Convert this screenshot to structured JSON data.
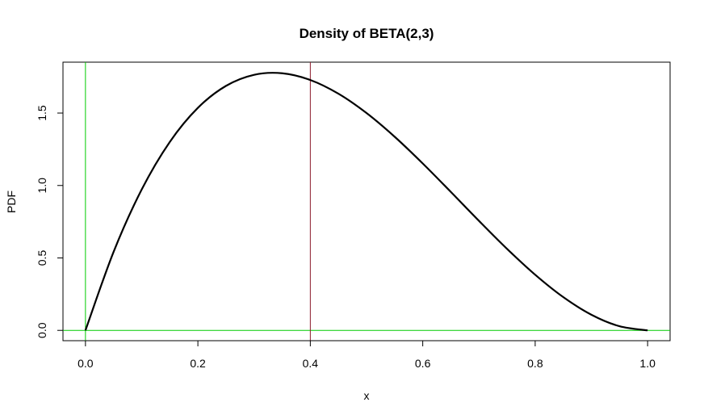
{
  "chart_data": {
    "type": "line",
    "title": "Density of BETA(2,3)",
    "xlabel": "x",
    "ylabel": "PDF",
    "xlim": [
      -0.04,
      1.04
    ],
    "ylim": [
      -0.0712,
      1.8512
    ],
    "x_ticks": [
      0.0,
      0.2,
      0.4,
      0.6,
      0.8,
      1.0
    ],
    "x_tick_labels": [
      "0.0",
      "0.2",
      "0.4",
      "0.6",
      "0.8",
      "1.0"
    ],
    "y_ticks": [
      0.0,
      0.5,
      1.0,
      1.5
    ],
    "y_tick_labels": [
      "0.0",
      "0.5",
      "1.0",
      "1.5"
    ],
    "grid": false,
    "legend": "none",
    "series": [
      {
        "color": "#000000",
        "x": [
          0.0,
          0.05,
          0.1,
          0.15,
          0.2,
          0.25,
          0.3,
          0.35,
          0.4,
          0.45,
          0.5,
          0.55,
          0.6,
          0.65,
          0.7,
          0.75,
          0.8,
          0.85,
          0.9,
          0.95,
          1.0
        ],
        "y": [
          0.0,
          0.5415,
          0.972,
          1.3005,
          1.536,
          1.6875,
          1.764,
          1.7745,
          1.728,
          1.6335,
          1.5,
          1.3365,
          1.152,
          0.9555,
          0.756,
          0.5625,
          0.384,
          0.2295,
          0.108,
          0.0285,
          0.0
        ]
      }
    ],
    "reference_lines": [
      {
        "orientation": "vertical",
        "x": 0.0,
        "color": "#00cc00"
      },
      {
        "orientation": "horizontal",
        "y": 0.0,
        "color": "#00cc00"
      },
      {
        "orientation": "vertical",
        "x": 0.4,
        "color": "#8b1a2b"
      }
    ]
  }
}
